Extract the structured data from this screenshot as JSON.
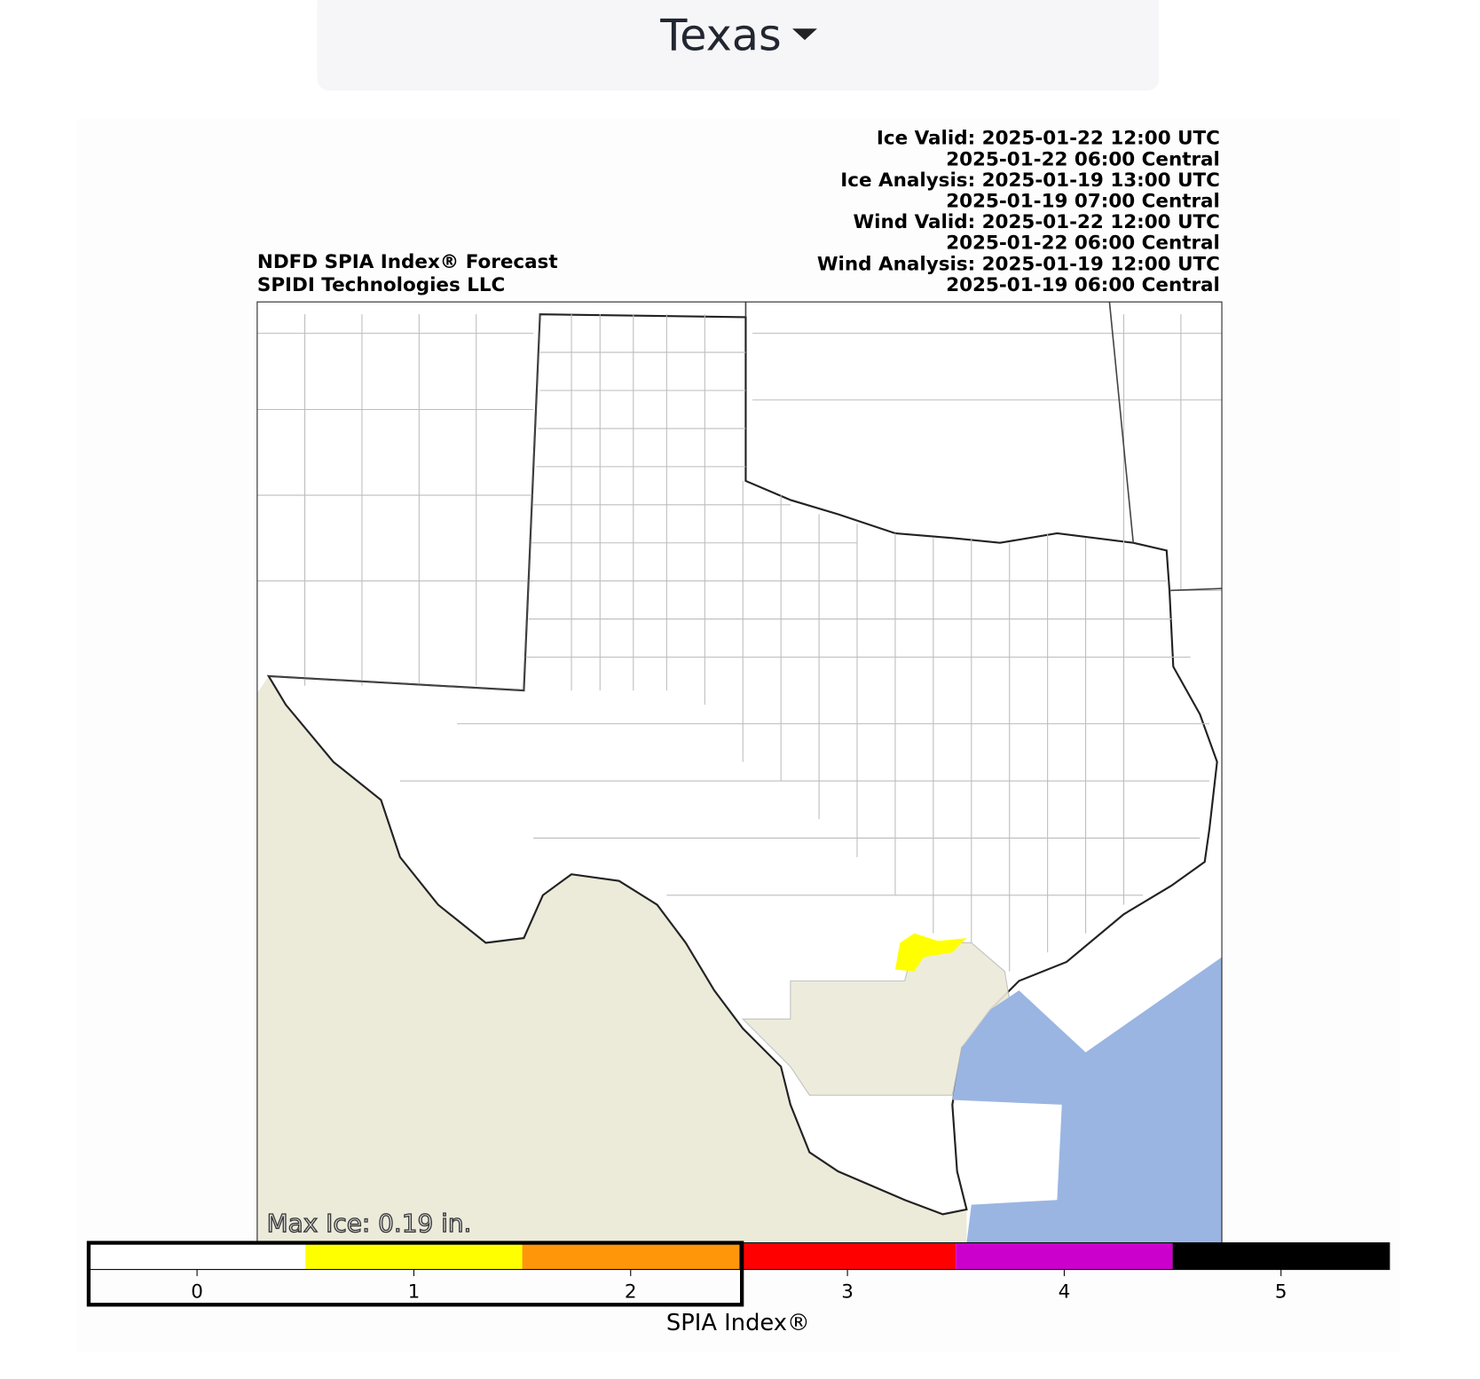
{
  "dropdown": {
    "label": "Texas"
  },
  "map": {
    "title_lines": [
      "NDFD SPIA Index® Forecast",
      "SPIDI Technologies LLC"
    ],
    "time_lines": [
      "Ice Valid: 2025-01-22 12:00 UTC",
      "2025-01-22 06:00 Central",
      "Ice Analysis: 2025-01-19 13:00 UTC",
      "2025-01-19 07:00 Central",
      "Wind Valid: 2025-01-22 12:00 UTC",
      "2025-01-22 06:00 Central",
      "Wind Analysis: 2025-01-19 12:00 UTC",
      "2025-01-19 06:00 Central"
    ],
    "max_ice": "Max Ice: 0.19 in."
  },
  "legend": {
    "label": "SPIA Index®",
    "ticks": [
      0,
      1,
      2,
      3,
      4,
      5
    ],
    "colors": [
      "#ffffff",
      "#ffff00",
      "#ff960a",
      "#ff0000",
      "#cc00cc",
      "#000000"
    ]
  }
}
